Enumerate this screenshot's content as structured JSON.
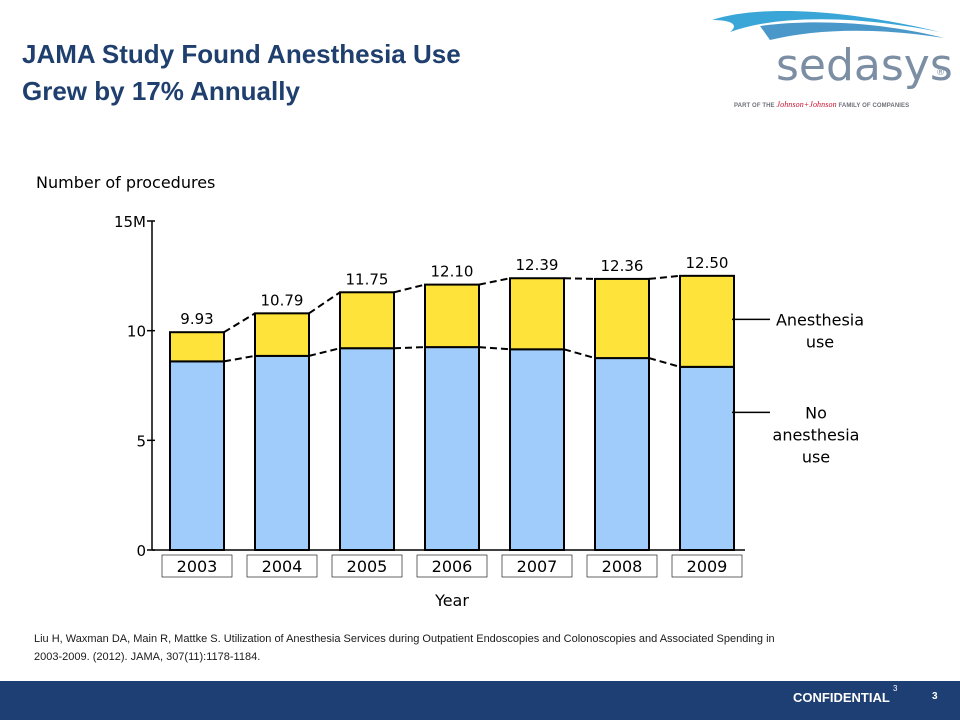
{
  "slide": {
    "title_line1": "JAMA Study Found Anesthesia Use",
    "title_line2": "Grew by 17% Annually",
    "citation_line1": "Liu H, Waxman DA, Main R, Mattke S. Utilization of Anesthesia Services during Outpatient Endoscopies and Colonoscopies and Associated Spending in",
    "citation_line2": "2003-2009. (2012). JAMA, 307(11):1178-1184.",
    "confidential_label": "CONFIDENTIAL",
    "page_number_small": "3",
    "page_number": "3"
  },
  "logo": {
    "wordmark": "sedasys",
    "registered": "®",
    "tagline_prefix": "PART OF THE",
    "tagline_brand": "Johnson+Johnson",
    "tagline_suffix": "FAMILY OF COMPANIES",
    "wave_color": "#3aa6d8",
    "text_color": "#7b8ea3"
  },
  "colors": {
    "title": "#1f3f6e",
    "anesthesia": "#fde33a",
    "no_anesthesia": "#a0ccfb",
    "footer_bar": "#1e3f73"
  },
  "chart_data": {
    "type": "bar",
    "stacked": true,
    "title": "",
    "ylabel": "Number of procedures",
    "xlabel": "Year",
    "categories": [
      "2003",
      "2004",
      "2005",
      "2006",
      "2007",
      "2008",
      "2009"
    ],
    "ylim": [
      0,
      15
    ],
    "y_ticks": [
      0,
      5,
      10,
      15
    ],
    "y_tick_labels": [
      "0",
      "5",
      "10",
      "15M"
    ],
    "series": [
      {
        "name": "No anesthesia use",
        "values": [
          8.6,
          8.85,
          9.2,
          9.25,
          9.15,
          8.75,
          8.35
        ]
      },
      {
        "name": "Anesthesia use",
        "values": [
          1.33,
          1.94,
          2.55,
          2.85,
          3.24,
          3.61,
          4.15
        ]
      }
    ],
    "totals": [
      9.93,
      10.79,
      11.75,
      12.1,
      12.39,
      12.36,
      12.5
    ],
    "total_labels": [
      "9.93",
      "10.79",
      "11.75",
      "12.10",
      "12.39",
      "12.36",
      "12.50"
    ],
    "legend_labels": {
      "anesthesia": [
        "Anesthesia",
        "use"
      ],
      "no_anesthesia": [
        "No",
        "anesthesia",
        "use"
      ]
    },
    "legend_position": "right",
    "grid": false
  }
}
